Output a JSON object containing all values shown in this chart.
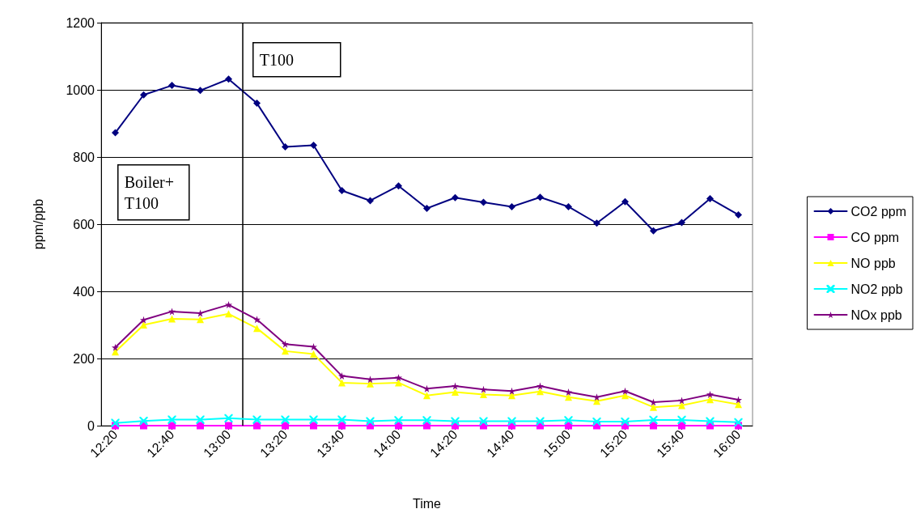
{
  "chart_data": {
    "type": "line",
    "xlabel": "Time",
    "ylabel": "ppm/ppb",
    "x": [
      12.3333,
      12.5,
      12.6667,
      12.8333,
      13,
      13.1667,
      13.3333,
      13.5,
      13.6667,
      13.8333,
      14,
      14.1667,
      14.3333,
      14.5,
      14.6667,
      14.8333,
      15,
      15.1667,
      15.3333,
      15.5,
      15.6667,
      15.8333,
      16
    ],
    "xlim": [
      12.25,
      16.0833
    ],
    "xticks": [
      {
        "value": 12.3333,
        "label": "12:20"
      },
      {
        "value": 12.6667,
        "label": "12:40"
      },
      {
        "value": 13,
        "label": "13:00"
      },
      {
        "value": 13.3333,
        "label": "13:20"
      },
      {
        "value": 13.6667,
        "label": "13:40"
      },
      {
        "value": 14,
        "label": "14:00"
      },
      {
        "value": 14.3333,
        "label": "14:20"
      },
      {
        "value": 14.6667,
        "label": "14:40"
      },
      {
        "value": 15,
        "label": "15:00"
      },
      {
        "value": 15.3333,
        "label": "15:20"
      },
      {
        "value": 15.6667,
        "label": "15:40"
      },
      {
        "value": 16,
        "label": "16:00"
      }
    ],
    "ylim": [
      0,
      1200
    ],
    "yticks": [
      0,
      200,
      400,
      600,
      800,
      1000,
      1200
    ],
    "grid": "y",
    "legend": "right",
    "series": [
      {
        "name": "CO2 ppm",
        "color": "#000080",
        "marker": "diamond",
        "values": [
          872,
          985,
          1013,
          998,
          1032,
          960,
          830,
          835,
          700,
          670,
          714,
          647,
          679,
          665,
          652,
          680,
          652,
          603,
          667,
          580,
          605,
          676,
          628
        ]
      },
      {
        "name": "CO ppm",
        "color": "#ff00ff",
        "marker": "square",
        "values": [
          0,
          0,
          0,
          0,
          0,
          0,
          0,
          0,
          0,
          0,
          0,
          0,
          0,
          0,
          0,
          0,
          0,
          0,
          0,
          0,
          0,
          0,
          0
        ]
      },
      {
        "name": "NO ppb",
        "color": "#ffff00",
        "marker": "triangle",
        "values": [
          220,
          300,
          318,
          316,
          333,
          290,
          222,
          213,
          128,
          125,
          128,
          90,
          100,
          93,
          90,
          102,
          85,
          73,
          90,
          55,
          60,
          78,
          63
        ]
      },
      {
        "name": "NO2 ppb",
        "color": "#00ffff",
        "marker": "cross",
        "values": [
          8,
          14,
          18,
          18,
          22,
          18,
          18,
          18,
          18,
          13,
          16,
          16,
          13,
          13,
          13,
          13,
          16,
          12,
          12,
          17,
          17,
          13,
          10
        ]
      },
      {
        "name": "NOx ppb",
        "color": "#800080",
        "marker": "star",
        "values": [
          233,
          315,
          340,
          335,
          360,
          316,
          243,
          235,
          148,
          138,
          143,
          110,
          118,
          108,
          103,
          118,
          100,
          85,
          103,
          70,
          75,
          93,
          77
        ]
      }
    ],
    "ref_lines": [
      {
        "axis": "x",
        "value": 13.0833,
        "color": "#000000"
      }
    ],
    "annotations": [
      "T100",
      "Boiler+ T100"
    ]
  }
}
